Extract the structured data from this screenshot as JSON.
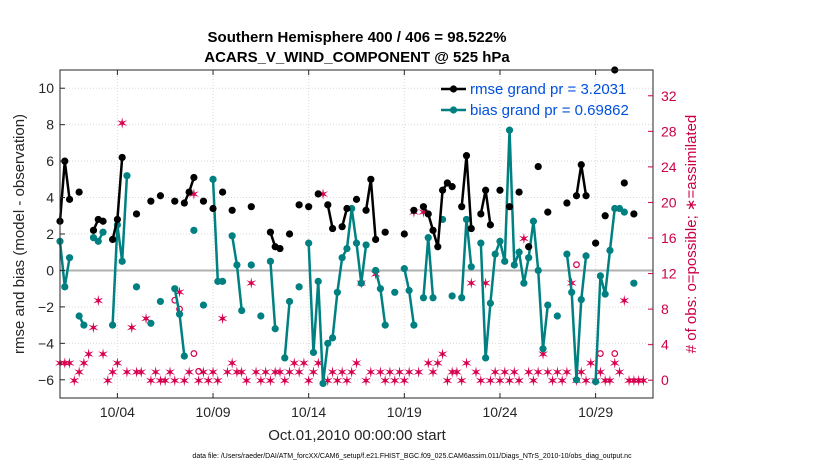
{
  "chart_data": {
    "type": "line",
    "title_line1": "Southern Hemisphere 400 / 406 = 98.522%",
    "title_line2": "ACARS_V_WIND_COMPONENT @ 525 hPa",
    "xlabel": "Oct.01,2010 00:00:00 start",
    "ylabel_left": "rmse and bias (model - observation)",
    "ylabel_right": "# of obs: o=possible; ∗=assimilated",
    "footnote": "data file: /Users/raeder/DAI/ATM_forcXX/CAM6_setup/f.e21.FHIST_BGC.f09_025.CAM6assim.011/Diags_NTrS_2010-10/obs_diag_output.nc",
    "xlim": [
      1.0,
      32.0
    ],
    "ylim_left": [
      -7,
      11
    ],
    "ylim_right": [
      -2,
      34.9
    ],
    "x_ticks": [
      4,
      9,
      14,
      19,
      24,
      29
    ],
    "x_tick_labels": [
      "10/04",
      "10/09",
      "10/14",
      "10/19",
      "10/24",
      "10/29"
    ],
    "y_left_ticks": [
      -6,
      -4,
      -2,
      0,
      2,
      4,
      6,
      8,
      10
    ],
    "y_left_tick_labels": [
      "−6",
      "−4",
      "−2",
      "0",
      "2",
      "4",
      "6",
      "8",
      "10"
    ],
    "y_right_ticks": [
      0,
      4,
      8,
      12,
      16,
      20,
      24,
      28,
      32
    ],
    "y_right_tick_labels": [
      "0",
      "4",
      "8",
      "12",
      "16",
      "20",
      "24",
      "28",
      "32"
    ],
    "legend": [
      {
        "label": "rmse grand pr = 3.2031",
        "color": "#000000"
      },
      {
        "label": "bias grand pr = 0.69862",
        "color": "#008080"
      }
    ],
    "colors": {
      "rmse": "#000000",
      "bias": "#008080",
      "obs": "#d6004f",
      "zero_line": "#b0b0b0"
    },
    "series": [
      {
        "name": "rmse",
        "points": [
          [
            1.0,
            2.7
          ],
          [
            1.25,
            6.0
          ],
          [
            1.5,
            3.9
          ],
          [
            2.0,
            4.3
          ],
          [
            2.75,
            2.2
          ],
          [
            3.0,
            2.8
          ],
          [
            3.25,
            2.7
          ],
          [
            3.75,
            1.7
          ],
          [
            4.0,
            2.8
          ],
          [
            4.25,
            6.2
          ],
          [
            5.0,
            3.1
          ],
          [
            5.75,
            3.8
          ],
          [
            6.25,
            4.1
          ],
          [
            7.0,
            3.8
          ],
          [
            7.5,
            3.7
          ],
          [
            7.75,
            4.3
          ],
          [
            8.0,
            5.1
          ],
          [
            8.5,
            3.8
          ],
          [
            9.0,
            3.4
          ],
          [
            9.5,
            4.3
          ],
          [
            10.0,
            3.3
          ],
          [
            11.0,
            3.5
          ],
          [
            12.0,
            2.1
          ],
          [
            12.25,
            1.3
          ],
          [
            12.5,
            1.2
          ],
          [
            13.0,
            2.0
          ],
          [
            13.5,
            3.6
          ],
          [
            14.0,
            3.5
          ],
          [
            14.5,
            4.2
          ],
          [
            15.0,
            3.6
          ],
          [
            15.25,
            2.3
          ],
          [
            15.75,
            2.4
          ],
          [
            16.0,
            3.4
          ],
          [
            16.5,
            3.9
          ],
          [
            17.0,
            3.3
          ],
          [
            17.25,
            5.0
          ],
          [
            17.5,
            1.7
          ],
          [
            18.0,
            2.1
          ],
          [
            19.0,
            2.0
          ],
          [
            19.5,
            3.3
          ],
          [
            20.0,
            3.5
          ],
          [
            20.25,
            3.1
          ],
          [
            20.5,
            2.2
          ],
          [
            20.75,
            1.3
          ],
          [
            21.0,
            4.4
          ],
          [
            21.25,
            4.8
          ],
          [
            21.5,
            4.6
          ],
          [
            22.0,
            3.5
          ],
          [
            22.25,
            6.3
          ],
          [
            22.5,
            2.3
          ],
          [
            23.0,
            3.1
          ],
          [
            23.25,
            4.4
          ],
          [
            23.5,
            2.5
          ],
          [
            24.0,
            4.4
          ],
          [
            24.5,
            3.5
          ],
          [
            25.0,
            4.3
          ],
          [
            25.5,
            1.3
          ],
          [
            26.0,
            5.7
          ],
          [
            26.5,
            3.2
          ],
          [
            27.5,
            3.7
          ],
          [
            28.0,
            4.1
          ],
          [
            28.25,
            5.8
          ],
          [
            28.5,
            4.1
          ],
          [
            29.0,
            1.5
          ],
          [
            29.5,
            3.0
          ],
          [
            30.0,
            11.0
          ],
          [
            30.5,
            4.8
          ],
          [
            31.0,
            3.1
          ]
        ]
      },
      {
        "name": "bias",
        "points": [
          [
            1.0,
            1.6
          ],
          [
            1.25,
            -0.9
          ],
          [
            1.5,
            0.7
          ],
          [
            2.0,
            -2.5
          ],
          [
            2.25,
            -3.0
          ],
          [
            2.75,
            1.8
          ],
          [
            3.0,
            1.6
          ],
          [
            3.25,
            2.1
          ],
          [
            3.75,
            -3.0
          ],
          [
            4.0,
            2.5
          ],
          [
            4.25,
            0.5
          ],
          [
            4.5,
            5.2
          ],
          [
            5.0,
            -0.9
          ],
          [
            5.75,
            -2.9
          ],
          [
            6.25,
            -1.7
          ],
          [
            7.0,
            -1.0
          ],
          [
            7.25,
            -2.4
          ],
          [
            7.5,
            -4.7
          ],
          [
            8.0,
            2.2
          ],
          [
            8.5,
            -1.9
          ],
          [
            9.0,
            5.0
          ],
          [
            9.25,
            -0.6
          ],
          [
            9.5,
            -0.6
          ],
          [
            10.0,
            1.9
          ],
          [
            10.25,
            0.3
          ],
          [
            10.5,
            -2.2
          ],
          [
            11.0,
            0.3
          ],
          [
            11.5,
            -2.5
          ],
          [
            12.0,
            0.5
          ],
          [
            12.25,
            -3.2
          ],
          [
            12.75,
            -4.8
          ],
          [
            13.0,
            -1.7
          ],
          [
            13.5,
            -0.9
          ],
          [
            14.0,
            1.5
          ],
          [
            14.25,
            -4.5
          ],
          [
            14.5,
            -0.6
          ],
          [
            14.75,
            -6.2
          ],
          [
            15.0,
            -4.0
          ],
          [
            15.25,
            -3.7
          ],
          [
            15.5,
            -1.2
          ],
          [
            15.75,
            0.7
          ],
          [
            16.0,
            1.2
          ],
          [
            16.25,
            3.4
          ],
          [
            16.5,
            1.5
          ],
          [
            16.75,
            -0.7
          ],
          [
            17.0,
            1.4
          ],
          [
            17.5,
            0.0
          ],
          [
            17.75,
            -1.0
          ],
          [
            18.0,
            -3.0
          ],
          [
            18.5,
            -1.2
          ],
          [
            19.0,
            0.1
          ],
          [
            19.25,
            -1.1
          ],
          [
            19.5,
            -3.0
          ],
          [
            20.0,
            -1.5
          ],
          [
            20.25,
            1.8
          ],
          [
            20.5,
            -1.5
          ],
          [
            21.0,
            2.8
          ],
          [
            21.5,
            -1.4
          ],
          [
            22.0,
            -1.5
          ],
          [
            22.25,
            2.8
          ],
          [
            22.5,
            0.2
          ],
          [
            23.0,
            1.5
          ],
          [
            23.25,
            -4.8
          ],
          [
            23.5,
            -1.8
          ],
          [
            23.75,
            0.9
          ],
          [
            24.0,
            1.6
          ],
          [
            24.25,
            0.5
          ],
          [
            24.5,
            7.7
          ],
          [
            24.75,
            0.3
          ],
          [
            25.0,
            1.0
          ],
          [
            25.25,
            -0.7
          ],
          [
            25.5,
            0.7
          ],
          [
            25.75,
            2.7
          ],
          [
            26.0,
            0.0
          ],
          [
            26.25,
            -4.3
          ],
          [
            26.5,
            -1.9
          ],
          [
            27.0,
            -2.5
          ],
          [
            27.5,
            0.9
          ],
          [
            27.75,
            -1.2
          ],
          [
            28.0,
            -6.0
          ],
          [
            28.25,
            -1.6
          ],
          [
            28.5,
            0.8
          ],
          [
            29.0,
            -6.1
          ],
          [
            29.25,
            -0.3
          ],
          [
            29.5,
            -1.3
          ],
          [
            29.75,
            1.1
          ],
          [
            30.0,
            3.4
          ],
          [
            30.25,
            3.4
          ],
          [
            30.5,
            3.2
          ],
          [
            31.0,
            -0.7
          ]
        ]
      },
      {
        "name": "obs_assimilated",
        "points": [
          [
            1.0,
            2
          ],
          [
            1.25,
            2
          ],
          [
            1.5,
            2
          ],
          [
            1.75,
            0
          ],
          [
            2.0,
            1
          ],
          [
            2.25,
            2
          ],
          [
            2.5,
            3
          ],
          [
            2.75,
            6
          ],
          [
            3.0,
            9
          ],
          [
            3.25,
            3
          ],
          [
            3.5,
            0
          ],
          [
            3.75,
            1
          ],
          [
            4.0,
            2
          ],
          [
            4.25,
            29
          ],
          [
            4.5,
            1
          ],
          [
            4.75,
            6
          ],
          [
            5.0,
            1
          ],
          [
            5.25,
            1
          ],
          [
            5.5,
            7
          ],
          [
            5.75,
            0
          ],
          [
            6.0,
            1
          ],
          [
            6.25,
            0
          ],
          [
            6.5,
            0
          ],
          [
            6.75,
            1
          ],
          [
            7.0,
            0
          ],
          [
            7.25,
            10
          ],
          [
            7.5,
            0
          ],
          [
            7.75,
            1
          ],
          [
            8.0,
            21
          ],
          [
            8.25,
            0
          ],
          [
            8.5,
            1
          ],
          [
            8.75,
            0
          ],
          [
            9.0,
            1
          ],
          [
            9.25,
            0
          ],
          [
            9.5,
            7
          ],
          [
            9.75,
            1
          ],
          [
            10.0,
            2
          ],
          [
            10.25,
            1
          ],
          [
            10.5,
            1
          ],
          [
            10.75,
            0
          ],
          [
            11.0,
            11
          ],
          [
            11.25,
            1
          ],
          [
            11.5,
            0
          ],
          [
            11.75,
            1
          ],
          [
            12.0,
            0
          ],
          [
            12.25,
            1
          ],
          [
            12.5,
            1
          ],
          [
            12.75,
            0
          ],
          [
            13.0,
            1
          ],
          [
            13.25,
            2
          ],
          [
            13.5,
            1
          ],
          [
            13.75,
            2
          ],
          [
            14.0,
            0
          ],
          [
            14.25,
            1
          ],
          [
            14.5,
            2
          ],
          [
            14.75,
            21
          ],
          [
            15.0,
            0
          ],
          [
            15.25,
            1
          ],
          [
            15.5,
            0
          ],
          [
            15.75,
            1
          ],
          [
            16.0,
            0
          ],
          [
            16.25,
            1
          ],
          [
            16.5,
            2
          ],
          [
            16.75,
            11
          ],
          [
            17.0,
            0
          ],
          [
            17.25,
            1
          ],
          [
            17.5,
            12
          ],
          [
            17.75,
            1
          ],
          [
            18.0,
            0
          ],
          [
            18.25,
            1
          ],
          [
            18.5,
            0
          ],
          [
            18.75,
            1
          ],
          [
            19.0,
            0
          ],
          [
            19.25,
            1
          ],
          [
            19.5,
            19
          ],
          [
            19.75,
            1
          ],
          [
            20.0,
            19
          ],
          [
            20.25,
            2
          ],
          [
            20.5,
            1
          ],
          [
            20.75,
            2
          ],
          [
            21.0,
            3
          ],
          [
            21.25,
            0
          ],
          [
            21.5,
            1
          ],
          [
            21.75,
            1
          ],
          [
            22.0,
            0
          ],
          [
            22.25,
            2
          ],
          [
            22.5,
            11
          ],
          [
            22.75,
            1
          ],
          [
            23.0,
            0
          ],
          [
            23.25,
            11
          ],
          [
            23.5,
            0
          ],
          [
            23.75,
            1
          ],
          [
            24.0,
            0
          ],
          [
            24.25,
            1
          ],
          [
            24.5,
            0
          ],
          [
            24.75,
            1
          ],
          [
            25.0,
            0
          ],
          [
            25.25,
            16
          ],
          [
            25.5,
            1
          ],
          [
            25.75,
            0
          ],
          [
            26.0,
            1
          ],
          [
            26.25,
            3
          ],
          [
            26.5,
            1
          ],
          [
            26.75,
            0
          ],
          [
            27.0,
            1
          ],
          [
            27.25,
            0
          ],
          [
            27.5,
            1
          ],
          [
            27.75,
            11
          ],
          [
            28.0,
            0
          ],
          [
            28.25,
            1
          ],
          [
            28.5,
            0
          ],
          [
            28.75,
            2
          ],
          [
            29.0,
            0
          ],
          [
            29.25,
            1
          ],
          [
            29.5,
            0
          ],
          [
            29.75,
            0
          ],
          [
            30.0,
            2
          ],
          [
            30.25,
            1
          ],
          [
            30.5,
            9
          ],
          [
            30.75,
            0
          ],
          [
            31.0,
            0
          ],
          [
            31.25,
            0
          ],
          [
            31.5,
            0
          ]
        ]
      },
      {
        "name": "obs_possible",
        "points": [
          [
            7.0,
            9
          ],
          [
            7.25,
            8
          ],
          [
            8.0,
            3
          ],
          [
            8.25,
            1
          ],
          [
            28.0,
            13
          ],
          [
            29.25,
            3
          ],
          [
            30.0,
            3
          ]
        ]
      }
    ]
  }
}
